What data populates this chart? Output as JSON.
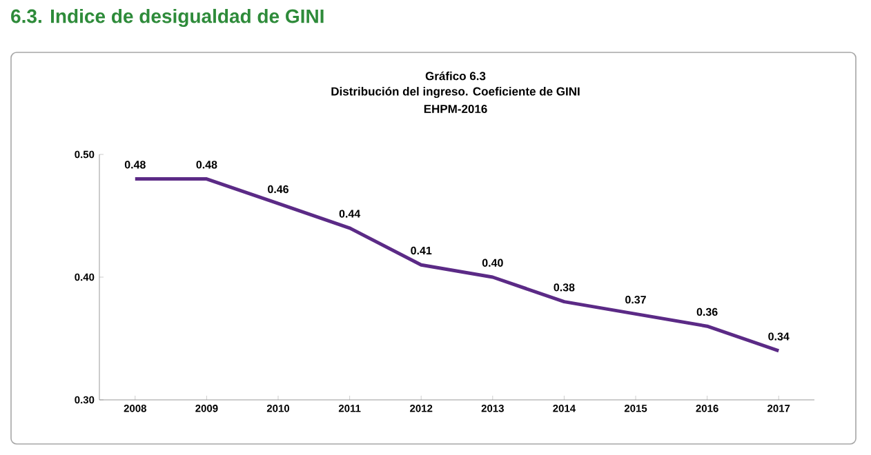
{
  "chart_data": {
    "type": "line",
    "title": "Gráfico 6.3",
    "subtitle": "Distribución del ingreso. Coeficiente de GINI",
    "annotations": [
      "6.3. Indice de desigualdad de GINI",
      "EHPM-2016"
    ],
    "categories": [
      "2008",
      "2009",
      "2010",
      "2011",
      "2012",
      "2013",
      "2014",
      "2015",
      "2016",
      "2017"
    ],
    "values": [
      0.48,
      0.48,
      0.46,
      0.44,
      0.41,
      0.4,
      0.38,
      0.37,
      0.36,
      0.34
    ],
    "value_labels": [
      "0.48",
      "0.48",
      "0.46",
      "0.44",
      "0.41",
      "0.40",
      "0.38",
      "0.37",
      "0.36",
      "0.34"
    ],
    "color": "#5b2a86",
    "ylim": [
      0.3,
      0.5
    ],
    "yticks": [
      {
        "value": 0.3,
        "label": "0.30"
      },
      {
        "value": 0.4,
        "label": "0.40"
      },
      {
        "value": 0.5,
        "label": "0.50"
      }
    ],
    "grid": false,
    "marker": "none",
    "line_style": "solid"
  }
}
